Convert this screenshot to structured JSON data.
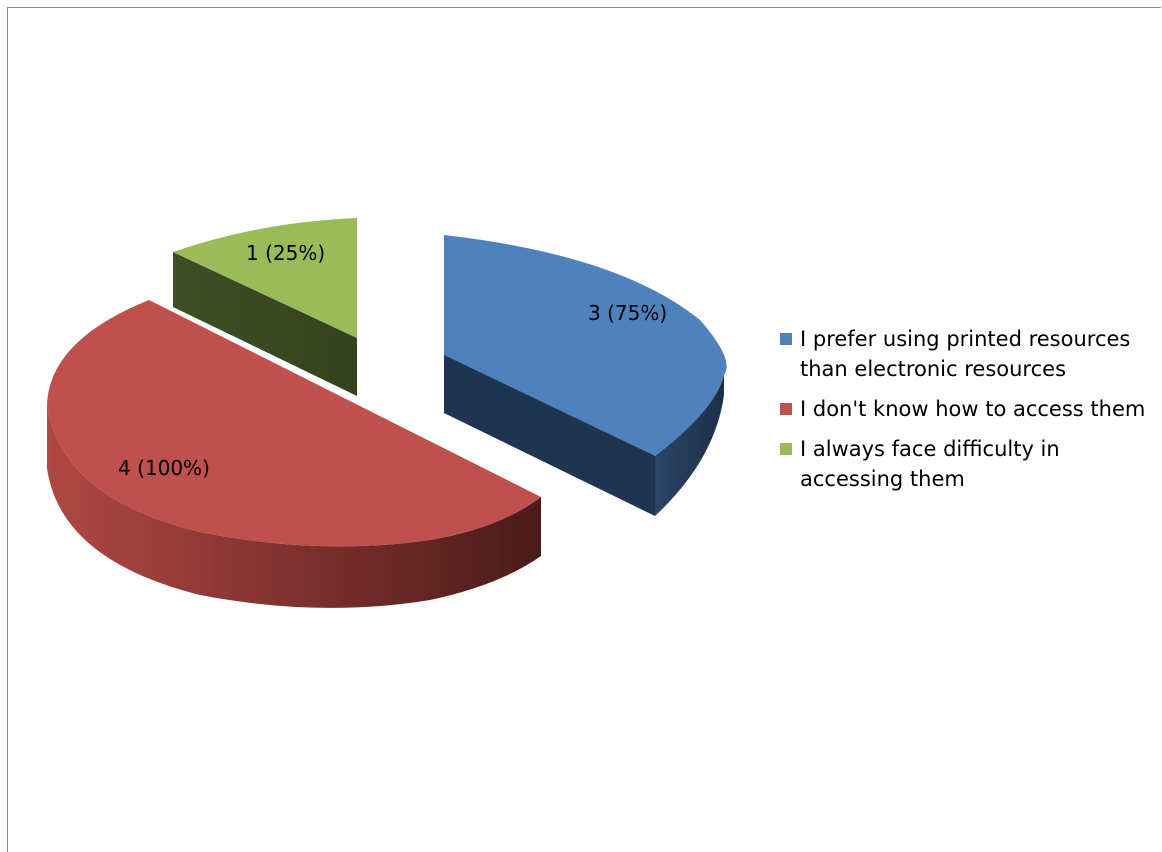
{
  "chart_data": {
    "type": "pie",
    "style": "3d-exploded",
    "categories": [
      "I prefer using printed resources than electronic resources",
      "I don't know how to access them",
      "I always face difficulty in accessing them"
    ],
    "values": [
      3,
      4,
      1
    ],
    "percentages": [
      75,
      100,
      25
    ],
    "data_labels": [
      "3 (75%)",
      "4 (100%)",
      "1 (25%)"
    ],
    "colors": [
      "#4F81BD",
      "#C0504D",
      "#9BBB59"
    ],
    "legend_position": "right",
    "title": ""
  }
}
